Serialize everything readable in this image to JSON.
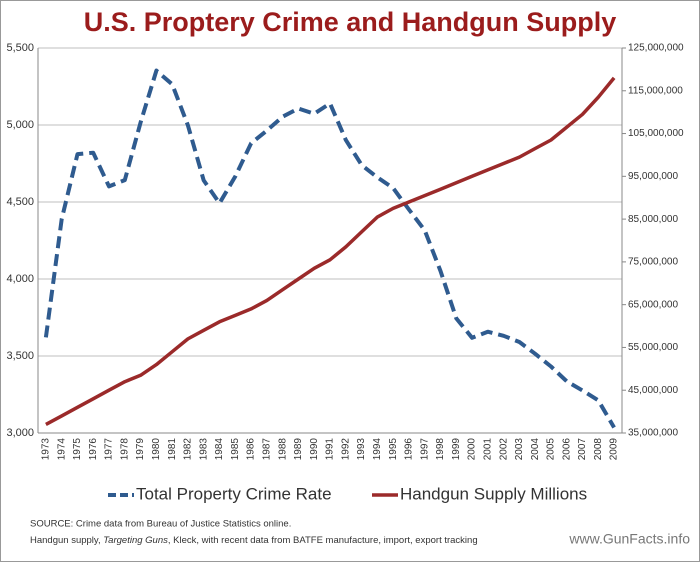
{
  "chart_data": {
    "type": "line",
    "title": "U.S. Proptery Crime and Handgun Supply",
    "categories": [
      "1973",
      "1974",
      "1975",
      "1976",
      "1977",
      "1978",
      "1979",
      "1980",
      "1981",
      "1982",
      "1983",
      "1984",
      "1985",
      "1986",
      "1987",
      "1988",
      "1989",
      "1990",
      "1991",
      "1992",
      "1993",
      "1994",
      "1995",
      "1996",
      "1997",
      "1998",
      "1999",
      "2000",
      "2001",
      "2002",
      "2003",
      "2004",
      "2005",
      "2006",
      "2007",
      "2008",
      "2009"
    ],
    "series": [
      {
        "name": "Total Property Crime Rate",
        "color": "#2f5b8f",
        "dashed": true,
        "values": [
          3621,
          4389,
          4811,
          4820,
          4601,
          4642,
          5017,
          5353,
          5264,
          4998,
          4640,
          4492,
          4666,
          4881,
          4964,
          5054,
          5107,
          5073,
          5140,
          4903,
          4740,
          4660,
          4591,
          4451,
          4316,
          4052,
          3744,
          3618,
          3658,
          3631,
          3591,
          3514,
          3432,
          3335,
          3276,
          3212,
          3036
        ]
      },
      {
        "name": "Handgun Supply Millions",
        "color": "#9b2a2a",
        "axis": "y2",
        "values": [
          37000000,
          39000000,
          41000000,
          43000000,
          45000000,
          47000000,
          48500000,
          51000000,
          54000000,
          57000000,
          59000000,
          61000000,
          62500000,
          64000000,
          66000000,
          68500000,
          71000000,
          73500000,
          75500000,
          78500000,
          82000000,
          85500000,
          87500000,
          89000000,
          90500000,
          92000000,
          93500000,
          95000000,
          96500000,
          98000000,
          99500000,
          101500000,
          103500000,
          106500000,
          109500000,
          113500000,
          118000000
        ]
      }
    ],
    "ylim": [
      3000,
      5500
    ],
    "yticks": [
      {
        "value": 3000,
        "label": "3,000"
      },
      {
        "value": 3500,
        "label": "3,500"
      },
      {
        "value": 4000,
        "label": "4,000"
      },
      {
        "value": 4500,
        "label": "4,500"
      },
      {
        "value": 5000,
        "label": "5,000"
      },
      {
        "value": 5500,
        "label": "5,500"
      }
    ],
    "y2lim": [
      35000000,
      125000000
    ],
    "y2ticks": [
      {
        "value": 35000000,
        "label": "35,000,000"
      },
      {
        "value": 45000000,
        "label": "45,000,000"
      },
      {
        "value": 55000000,
        "label": "55,000,000"
      },
      {
        "value": 65000000,
        "label": "65,000,000"
      },
      {
        "value": 75000000,
        "label": "75,000,000"
      },
      {
        "value": 85000000,
        "label": "85,000,000"
      },
      {
        "value": 95000000,
        "label": "95,000,000"
      },
      {
        "value": 105000000,
        "label": "105,000,000"
      },
      {
        "value": 115000000,
        "label": "115,000,000"
      },
      {
        "value": 125000000,
        "label": "125,000,000"
      }
    ],
    "grid": true,
    "legend": "bottom",
    "source": {
      "line1": "SOURCE: Crime data from Bureau of Justice Statistics online.",
      "line2_before": "Handgun supply, ",
      "line2_italic": "Targeting Guns",
      "line2_after": ", Kleck, with recent data from BATFE manufacture, import, export tracking"
    },
    "watermark": "www.GunFacts.info"
  }
}
